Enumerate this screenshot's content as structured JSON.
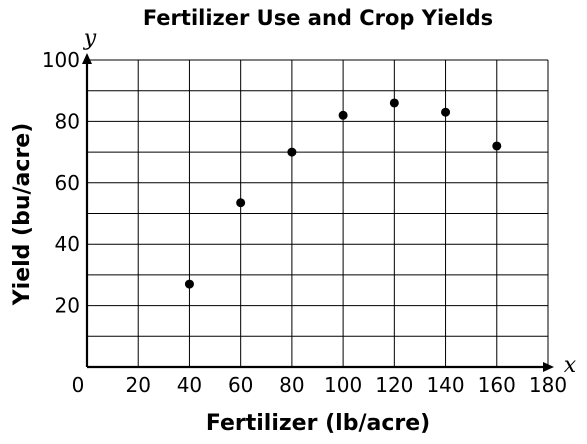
{
  "chart_data": {
    "type": "scatter",
    "title": "Fertilizer Use and Crop Yields",
    "xlabel": "Fertilizer (lb/acre)",
    "ylabel": "Yield (bu/acre)",
    "x_var": "x",
    "y_var": "y",
    "xlim": [
      0,
      180
    ],
    "ylim": [
      0,
      100
    ],
    "x_ticks": [
      0,
      20,
      40,
      60,
      80,
      100,
      120,
      140,
      160,
      180
    ],
    "x_tick_labels": [
      "0",
      "20",
      "40",
      "60",
      "80",
      "100",
      "120",
      "140",
      "160",
      "180"
    ],
    "y_ticks": [
      20,
      40,
      60,
      80,
      100
    ],
    "y_tick_labels": [
      "20",
      "40",
      "60",
      "80",
      "100"
    ],
    "x_grid_step": 20,
    "y_grid_step": 10,
    "grid": true,
    "points": [
      {
        "x": 40,
        "y": 27
      },
      {
        "x": 60,
        "y": 53.5
      },
      {
        "x": 80,
        "y": 70
      },
      {
        "x": 100,
        "y": 82
      },
      {
        "x": 120,
        "y": 86
      },
      {
        "x": 140,
        "y": 83
      },
      {
        "x": 160,
        "y": 72
      }
    ],
    "point_color": "#000000"
  }
}
